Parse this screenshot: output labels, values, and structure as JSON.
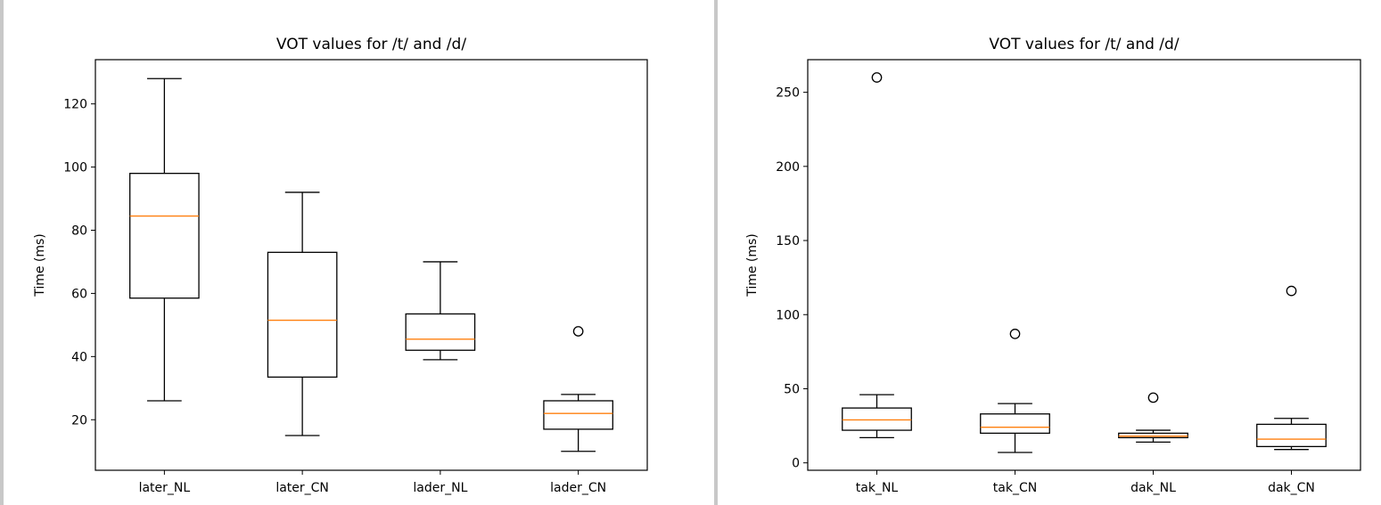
{
  "chart_data": [
    {
      "type": "box",
      "title": "VOT values for /t/ and /d/",
      "xlabel": "",
      "ylabel": "Time (ms)",
      "ylim": [
        4,
        134
      ],
      "yticks": [
        20,
        40,
        60,
        80,
        100,
        120
      ],
      "grid": false,
      "categories": [
        "later_NL",
        "later_CN",
        "lader_NL",
        "lader_CN"
      ],
      "boxes": [
        {
          "whisker_low": 26,
          "q1": 58.5,
          "median": 84.5,
          "q3": 98,
          "whisker_high": 128,
          "outliers": []
        },
        {
          "whisker_low": 15,
          "q1": 33.5,
          "median": 51.5,
          "q3": 73,
          "whisker_high": 92,
          "outliers": []
        },
        {
          "whisker_low": 39,
          "q1": 42,
          "median": 45.5,
          "q3": 53.5,
          "whisker_high": 70,
          "outliers": []
        },
        {
          "whisker_low": 10,
          "q1": 17,
          "median": 22,
          "q3": 26,
          "whisker_high": 28,
          "outliers": [
            48
          ]
        }
      ]
    },
    {
      "type": "box",
      "title": "VOT values for /t/ and /d/",
      "xlabel": "",
      "ylabel": "Time (ms)",
      "ylim": [
        -5,
        272
      ],
      "yticks": [
        0,
        50,
        100,
        150,
        200,
        250
      ],
      "grid": false,
      "categories": [
        "tak_NL",
        "tak_CN",
        "dak_NL",
        "dak_CN"
      ],
      "boxes": [
        {
          "whisker_low": 17,
          "q1": 22,
          "median": 29,
          "q3": 37,
          "whisker_high": 46,
          "outliers": [
            260
          ]
        },
        {
          "whisker_low": 7,
          "q1": 20,
          "median": 24,
          "q3": 33,
          "whisker_high": 40,
          "outliers": [
            87
          ]
        },
        {
          "whisker_low": 14,
          "q1": 17,
          "median": 18,
          "q3": 20,
          "whisker_high": 22,
          "outliers": [
            44
          ]
        },
        {
          "whisker_low": 9,
          "q1": 11,
          "median": 16,
          "q3": 26,
          "whisker_high": 30,
          "outliers": [
            116
          ]
        }
      ]
    }
  ],
  "colors": {
    "box": "#000000",
    "median": "#ff7f0e",
    "divider": "#c8c8c8"
  }
}
